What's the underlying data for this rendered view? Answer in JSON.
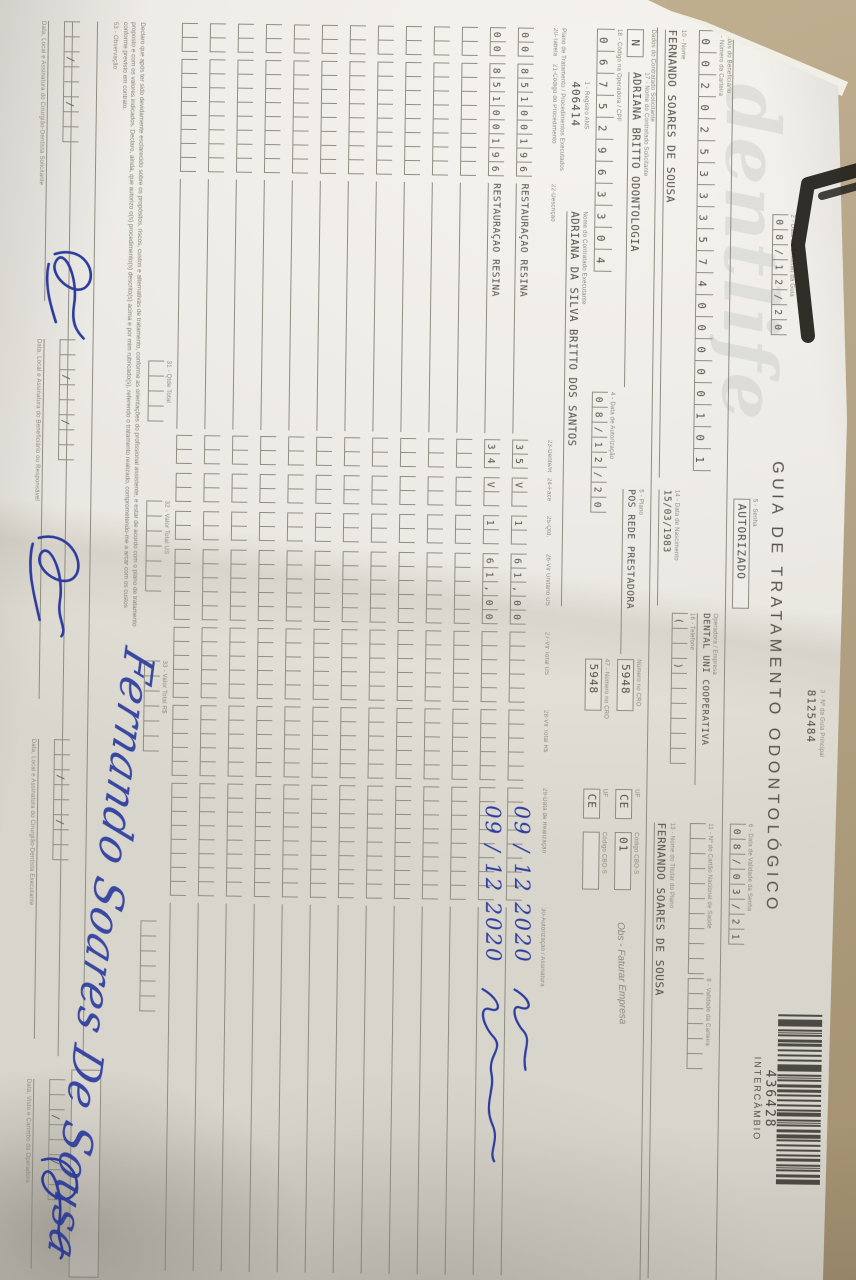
{
  "colors": {
    "background_tan": "#b7a789",
    "paper": "#e9e6df",
    "print_grey": "#8b897e",
    "value_ink": "#504e46",
    "handwriting_blue": "#2b3b9e",
    "barcode_ink": "#393731"
  },
  "header": {
    "logo_watermark": "dentlife",
    "title": "GUIA DE TRATAMENTO ODONTOLÓGICO",
    "guia_principal_label": "3 - Nº da Guia Principal",
    "guia_principal_value": "8125484",
    "barcode_number": "436428",
    "barcode_tag": "INTERCÂMBIO",
    "emissao_label": "2 - Data de Emissão da Guia",
    "emissao_value": "08/12/20",
    "senha_label": "5 - Senha",
    "senha_value": "AUTORIZADO",
    "validade_senha_label": "6 - Data de Validade da Senha",
    "validade_senha_value": "08/03/21"
  },
  "beneficiario": {
    "section_label": "Dados do Beneficiário",
    "carteira_label": "8 - Número da Carteira",
    "carteira_value": "00202533357400000101",
    "operadora_label": "Operadora / Empresa",
    "operadora_value": "DENTAL UNI COOPERATIVA",
    "telefone_label": "16 - Telefone",
    "telefone_value": "(  )",
    "cns_label": "11 - Nº do Cartão Nacional de Saúde",
    "cns_value": "",
    "validade_carteira_label": "9 - Validade da Carteira",
    "validade_carteira_value": "",
    "nome_label": "10 - Nome",
    "nome_value": "FERNANDO SOARES DE SOUSA",
    "nascimento_label": "14 - Data de Nascimento",
    "nascimento_value": "15/03/1983",
    "titular_label": "13 - Nome do Titular do Plano",
    "titular_value": "FERNANDO SOARES DE SOUSA"
  },
  "solicitante": {
    "section_label": "Dados do Contratado Solicitante",
    "tipo_value": "N",
    "nome_label": "17 - Nome do Contratado Solicitante",
    "nome_value": "ADRIANA BRITTO ODONTOLOGIA",
    "plano_label": "5 - Plano",
    "plano_value": "POS REDE PRESTADORA",
    "cro_label": "Número no CRO",
    "cro_value": "5948",
    "uf_label": "UF",
    "uf_value": "CE",
    "cbos_label": "Código CBO-S",
    "cbos_value": "01",
    "obs_note": "Obs - Faturar Empresa",
    "cpf_label": "18 - Código na Operadora / CPF",
    "cpf_value": "06752963304",
    "autorizacao_label": "4 - Data de Autorização",
    "autorizacao_value": "08/12/20",
    "ans_label": "1 - Registro ANS",
    "ans_value": "406414",
    "executante_nome_label": "Nome do Contratado Executante",
    "executante_nome_value": "ADRIANA DA SILVA BRITTO DOS SANTOS",
    "executante_cro_label": "47 - Número no CRO",
    "executante_cro_value": "5948",
    "executante_uf_label": "UF",
    "executante_uf_value": "CE",
    "executante_cbo_label": "Código CBO-S",
    "executante_cbo_value": ""
  },
  "table": {
    "section_label": "Plano de Tratamento / Procedimentos Executados",
    "columns": [
      "20-Tabela",
      "21-Código do Procedimento",
      "22-Descrição",
      "23-Dente/Região",
      "24-Face",
      "25-Qtd.",
      "26-Vlr Unitário US",
      "27-Vlr Total US",
      "28-Vlr Total R$",
      "29-Data de Realização",
      "30-Autorização / Assinatura"
    ],
    "rows": [
      {
        "tabela": "00",
        "codigo": "85100196",
        "descricao": "RESTAURAÇÃO RESINA",
        "dente": "35",
        "face": "V",
        "qtd": "1",
        "us": "61,00",
        "total": "",
        "rs": "",
        "data": "",
        "assin": ""
      },
      {
        "tabela": "00",
        "codigo": "85100196",
        "descricao": "RESTAURAÇÃO RESINA",
        "dente": "34",
        "face": "V",
        "qtd": "1",
        "us": "61,00",
        "total": "",
        "rs": "",
        "data": "",
        "assin": ""
      },
      {
        "tabela": "",
        "codigo": "",
        "descricao": "",
        "dente": "",
        "face": "",
        "qtd": "",
        "us": "",
        "total": "",
        "rs": "",
        "data": "",
        "assin": ""
      },
      {
        "tabela": "",
        "codigo": "",
        "descricao": "",
        "dente": "",
        "face": "",
        "qtd": "",
        "us": "",
        "total": "",
        "rs": "",
        "data": "",
        "assin": ""
      },
      {
        "tabela": "",
        "codigo": "",
        "descricao": "",
        "dente": "",
        "face": "",
        "qtd": "",
        "us": "",
        "total": "",
        "rs": "",
        "data": "",
        "assin": ""
      },
      {
        "tabela": "",
        "codigo": "",
        "descricao": "",
        "dente": "",
        "face": "",
        "qtd": "",
        "us": "",
        "total": "",
        "rs": "",
        "data": "",
        "assin": ""
      },
      {
        "tabela": "",
        "codigo": "",
        "descricao": "",
        "dente": "",
        "face": "",
        "qtd": "",
        "us": "",
        "total": "",
        "rs": "",
        "data": "",
        "assin": ""
      },
      {
        "tabela": "",
        "codigo": "",
        "descricao": "",
        "dente": "",
        "face": "",
        "qtd": "",
        "us": "",
        "total": "",
        "rs": "",
        "data": "",
        "assin": ""
      },
      {
        "tabela": "",
        "codigo": "",
        "descricao": "",
        "dente": "",
        "face": "",
        "qtd": "",
        "us": "",
        "total": "",
        "rs": "",
        "data": "",
        "assin": ""
      },
      {
        "tabela": "",
        "codigo": "",
        "descricao": "",
        "dente": "",
        "face": "",
        "qtd": "",
        "us": "",
        "total": "",
        "rs": "",
        "data": "",
        "assin": ""
      },
      {
        "tabela": "",
        "codigo": "",
        "descricao": "",
        "dente": "",
        "face": "",
        "qtd": "",
        "us": "",
        "total": "",
        "rs": "",
        "data": "",
        "assin": ""
      },
      {
        "tabela": "",
        "codigo": "",
        "descricao": "",
        "dente": "",
        "face": "",
        "qtd": "",
        "us": "",
        "total": "",
        "rs": "",
        "data": "",
        "assin": ""
      },
      {
        "tabela": "",
        "codigo": "",
        "descricao": "",
        "dente": "",
        "face": "",
        "qtd": "",
        "us": "",
        "total": "",
        "rs": "",
        "data": "",
        "assin": ""
      }
    ],
    "totals": {
      "qtde_label": "31 - Qtde Total",
      "us_label": "32 - Valor Total US",
      "rs_label": "33 - Valor Total R$"
    }
  },
  "footer": {
    "declaration_lines": [
      "Declaro que após ter sido devidamente esclarecido sobre os propósitos, riscos, custos e alternativas de tratamento, conforme as orientações do profissional assistente, e estar de acordo com o plano de tratamento",
      "proposto e com os valores indicados. Declaro, ainda, que autorizo o(s) procedimento(s) descrito(s) acima e por mim rubricado(s), referendo o tratamento realizado, comprometendo-me a arcar com os custos",
      "conforme previsto em contrato."
    ],
    "observacao_label": "53 - Observação",
    "sig_blocks": [
      {
        "label": "Data, Local e Assinatura do Cirurgião-Dentista Solicitante"
      },
      {
        "label": "Data, Local e Assinatura do Beneficiário ou Responsável"
      },
      {
        "label": "Data, Local e Assinatura do Cirurgião-Dentista Executante"
      },
      {
        "label": "Data, Visto e Carimbo da Operadora"
      }
    ]
  },
  "handwriting": {
    "row_date_1": "09 / 12 2020",
    "row_date_2": "09 / 12 2020",
    "big_signature": "Fernando Soares De Sousa"
  }
}
